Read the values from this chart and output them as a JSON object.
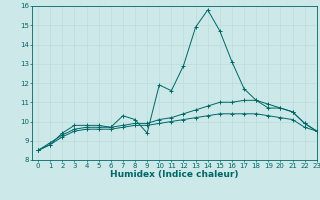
{
  "title": "",
  "xlabel": "Humidex (Indice chaleur)",
  "ylabel": "",
  "bg_color": "#cce8e8",
  "line_color": "#006666",
  "xlim": [
    -0.5,
    23
  ],
  "ylim": [
    8,
    16
  ],
  "yticks": [
    8,
    9,
    10,
    11,
    12,
    13,
    14,
    15,
    16
  ],
  "xticks": [
    0,
    1,
    2,
    3,
    4,
    5,
    6,
    7,
    8,
    9,
    10,
    11,
    12,
    13,
    14,
    15,
    16,
    17,
    18,
    19,
    20,
    21,
    22,
    23
  ],
  "series1_x": [
    0,
    1,
    2,
    3,
    4,
    5,
    6,
    7,
    8,
    9,
    10,
    11,
    12,
    13,
    14,
    15,
    16,
    17,
    18,
    19,
    20,
    21,
    22,
    23
  ],
  "series1_y": [
    8.5,
    8.8,
    9.4,
    9.8,
    9.8,
    9.8,
    9.7,
    10.3,
    10.1,
    9.4,
    11.9,
    11.6,
    12.9,
    14.9,
    15.8,
    14.7,
    13.1,
    11.7,
    11.1,
    10.7,
    10.7,
    10.5,
    9.9,
    9.5
  ],
  "series2_x": [
    0,
    1,
    2,
    3,
    4,
    5,
    6,
    7,
    8,
    9,
    10,
    11,
    12,
    13,
    14,
    15,
    16,
    17,
    18,
    19,
    20,
    21,
    22,
    23
  ],
  "series2_y": [
    8.5,
    8.9,
    9.3,
    9.6,
    9.7,
    9.7,
    9.7,
    9.8,
    9.9,
    9.9,
    10.1,
    10.2,
    10.4,
    10.6,
    10.8,
    11.0,
    11.0,
    11.1,
    11.1,
    10.9,
    10.7,
    10.5,
    9.9,
    9.5
  ],
  "series3_x": [
    0,
    1,
    2,
    3,
    4,
    5,
    6,
    7,
    8,
    9,
    10,
    11,
    12,
    13,
    14,
    15,
    16,
    17,
    18,
    19,
    20,
    21,
    22,
    23
  ],
  "series3_y": [
    8.5,
    8.8,
    9.2,
    9.5,
    9.6,
    9.6,
    9.6,
    9.7,
    9.8,
    9.8,
    9.9,
    10.0,
    10.1,
    10.2,
    10.3,
    10.4,
    10.4,
    10.4,
    10.4,
    10.3,
    10.2,
    10.1,
    9.7,
    9.5
  ],
  "grid_color": "#b8d8d8",
  "tick_fontsize": 5,
  "xlabel_fontsize": 6.5
}
